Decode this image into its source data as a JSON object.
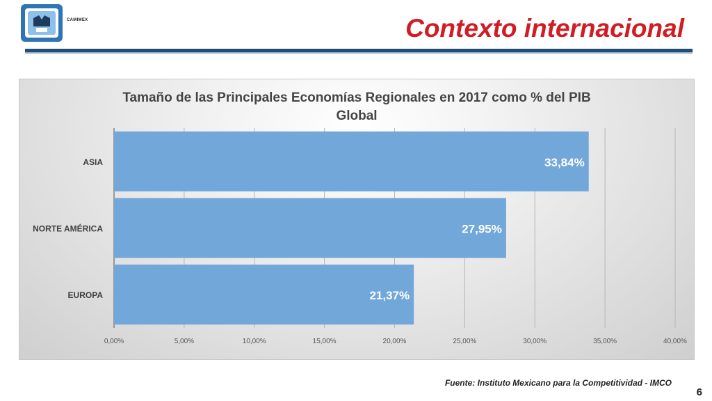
{
  "header": {
    "logo_text": "CAMIMEX",
    "title": "Contexto internacional"
  },
  "footer": {
    "source": "Fuente: Instituto Mexicano para la Competitividad - IMCO",
    "page_number": "6"
  },
  "colors": {
    "bar": "#72a7da",
    "title_red": "#d11c24",
    "rule_blue": "#1f4e79"
  },
  "chart_data": {
    "type": "bar",
    "orientation": "horizontal",
    "title": "Tamaño de las Principales Economías Regionales en 2017 como % del PIB Global",
    "title_lines": [
      "Tamaño de las Principales Economías Regionales en 2017 como % del PIB",
      "Global"
    ],
    "categories": [
      "ASIA",
      "NORTE AMÉRICA",
      "EUROPA"
    ],
    "values": [
      33.84,
      27.95,
      21.37
    ],
    "data_labels": [
      "33,84%",
      "27,95%",
      "21,37%"
    ],
    "xlim": [
      0,
      40
    ],
    "x_ticks": [
      0,
      5,
      10,
      15,
      20,
      25,
      30,
      35,
      40
    ],
    "x_tick_labels": [
      "0,00%",
      "5,00%",
      "10,00%",
      "15,00%",
      "20,00%",
      "25,00%",
      "30,00%",
      "35,00%",
      "40,00%"
    ],
    "xlabel": "",
    "ylabel": "",
    "grid": true,
    "legend": "none"
  }
}
